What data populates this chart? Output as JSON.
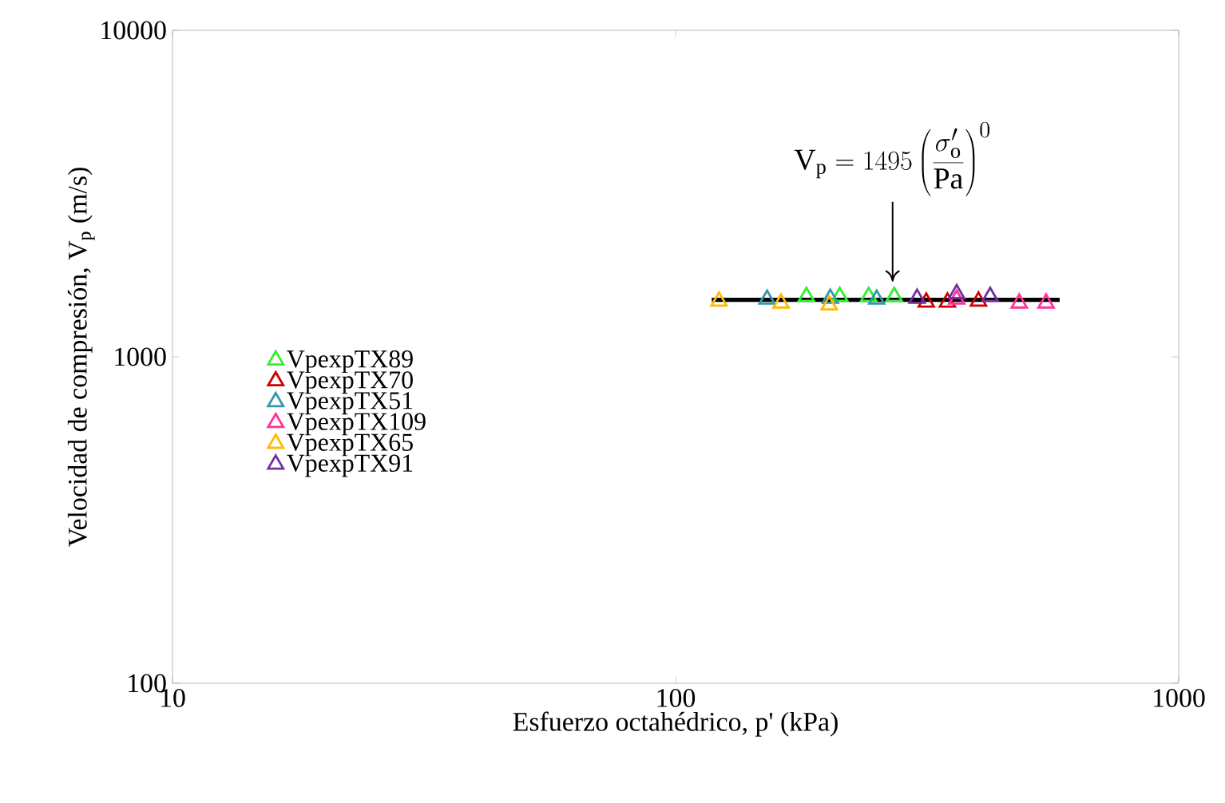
{
  "chart_data": {
    "type": "scatter",
    "xlabel": "Esfuerzo octahédrico, p' (kPa)",
    "ylabel": "Velocidad de compresión, V$_{p}$ (m/s)",
    "log": "xy",
    "xlim": [
      10,
      1000
    ],
    "ylim": [
      100,
      10000
    ],
    "xticks": [
      10,
      100,
      1000
    ],
    "yticks": [
      100,
      1000,
      10000
    ],
    "marker": "triangle",
    "legend": "left",
    "grid": false,
    "series": [
      {
        "name": "VpexpTX89",
        "color": "#33ee33",
        "x": [
          182,
          212,
          242,
          272
        ],
        "values": [
          1530,
          1530,
          1530,
          1530
        ]
      },
      {
        "name": "VpexpTX70",
        "color": "#cc0000",
        "x": [
          315,
          347,
          400
        ],
        "values": [
          1470,
          1470,
          1480
        ]
      },
      {
        "name": "VpexpTX51",
        "color": "#3399aa",
        "x": [
          152,
          203,
          251
        ],
        "values": [
          1500,
          1510,
          1500
        ]
      },
      {
        "name": "VpexpTX109",
        "color": "#ff3399",
        "x": [
          362,
          482,
          545
        ],
        "values": [
          1500,
          1460,
          1460
        ]
      },
      {
        "name": "VpexpTX65",
        "color": "#ffbb00",
        "x": [
          122,
          162,
          202
        ],
        "values": [
          1480,
          1460,
          1440
        ]
      },
      {
        "name": "VpexpTX91",
        "color": "#7030a0",
        "x": [
          302,
          362,
          422
        ],
        "values": [
          1510,
          1560,
          1530
        ]
      },
      {
        "type": "line",
        "color": "#000000",
        "marker": "none",
        "x": [
          118,
          580
        ],
        "values": [
          1495,
          1495
        ]
      }
    ],
    "annotations": [
      {
        "text": "\\mathrm{V_p} = 1495\\left(\\frac{\\mathrm{\\sigma'_o}}{\\mathrm{Pa}}\\right)^{0}",
        "x": 270,
        "y": 1700
      }
    ]
  }
}
